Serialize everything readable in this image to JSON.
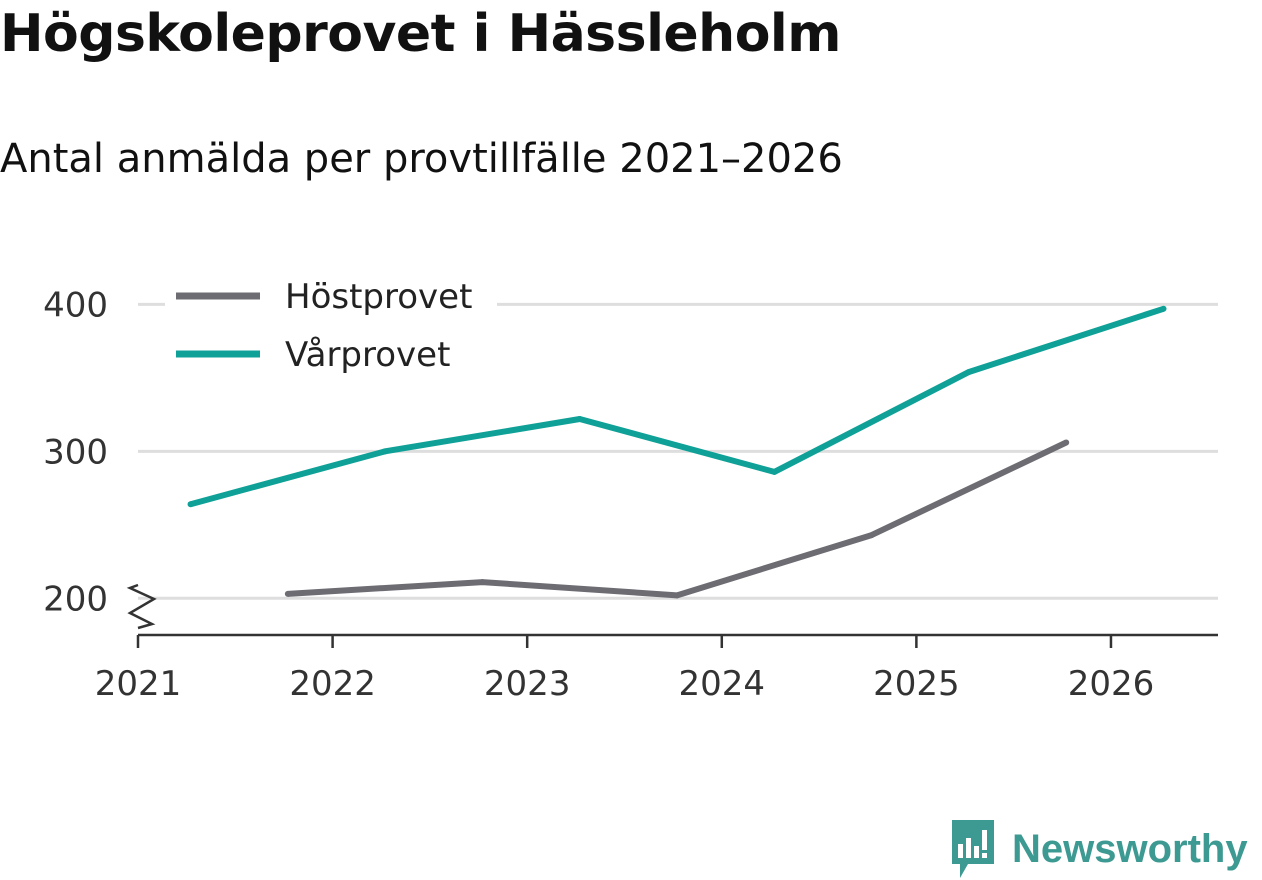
{
  "header": {
    "title": "Högskoleprovet i Hässleholm",
    "subtitle": "Antal anmälda per provtillfälle 2021–2026"
  },
  "brand": {
    "name": "Newsworthy",
    "color": "#3d9a92"
  },
  "chart_data": {
    "type": "line",
    "title": "Högskoleprovet i Hässleholm",
    "subtitle": "Antal anmälda per provtillfälle 2021–2026",
    "xlabel": "",
    "ylabel": "",
    "xlim": [
      2021.0,
      2026.55
    ],
    "ylim": [
      175,
      420
    ],
    "axis_break": true,
    "grid": true,
    "legend_position": "top-left",
    "x_ticks": [
      2021,
      2022,
      2023,
      2024,
      2025,
      2026
    ],
    "x_tick_labels": [
      "2021",
      "2022",
      "2023",
      "2024",
      "2025",
      "2026"
    ],
    "y_ticks": [
      200,
      300,
      400
    ],
    "y_tick_labels": [
      "200",
      "300",
      "400"
    ],
    "series": [
      {
        "name": "Höstprovet",
        "color": "#6d6c73",
        "x": [
          2021.77,
          2022.77,
          2023.77,
          2024.77,
          2025.77
        ],
        "y": [
          203,
          211,
          202,
          243,
          306
        ]
      },
      {
        "name": "Vårprovet",
        "color": "#0fa197",
        "x": [
          2021.27,
          2022.27,
          2023.27,
          2024.27,
          2025.27,
          2026.27
        ],
        "y": [
          264,
          300,
          322,
          286,
          354,
          397
        ]
      }
    ]
  }
}
